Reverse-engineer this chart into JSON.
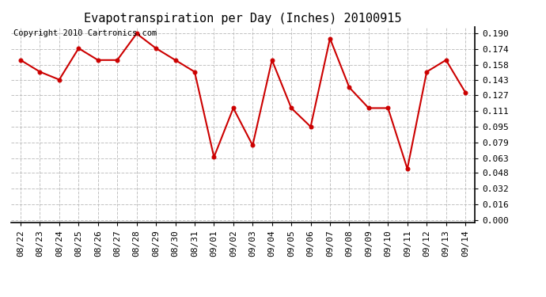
{
  "title": "Evapotranspiration per Day (Inches) 20100915",
  "copyright_text": "Copyright 2010 Cartronics.com",
  "x_labels": [
    "08/22",
    "08/23",
    "08/24",
    "08/25",
    "08/26",
    "08/27",
    "08/28",
    "08/29",
    "08/30",
    "08/31",
    "09/01",
    "09/02",
    "09/03",
    "09/04",
    "09/05",
    "09/06",
    "09/07",
    "09/08",
    "09/09",
    "09/10",
    "09/11",
    "09/12",
    "09/13",
    "09/14"
  ],
  "y_values": [
    0.163,
    0.151,
    0.143,
    0.175,
    0.163,
    0.163,
    0.19,
    0.175,
    0.163,
    0.151,
    0.064,
    0.114,
    0.076,
    0.163,
    0.114,
    0.095,
    0.185,
    0.135,
    0.114,
    0.114,
    0.052,
    0.151,
    0.163,
    0.13
  ],
  "line_color": "#cc0000",
  "marker_color": "#cc0000",
  "bg_color": "#ffffff",
  "grid_color": "#bbbbbb",
  "yticks": [
    0.0,
    0.016,
    0.032,
    0.048,
    0.063,
    0.079,
    0.095,
    0.111,
    0.127,
    0.143,
    0.158,
    0.174,
    0.19
  ],
  "ylim_min": -0.003,
  "ylim_max": 0.197,
  "title_fontsize": 11,
  "axis_fontsize": 8,
  "copyright_fontsize": 7.5
}
